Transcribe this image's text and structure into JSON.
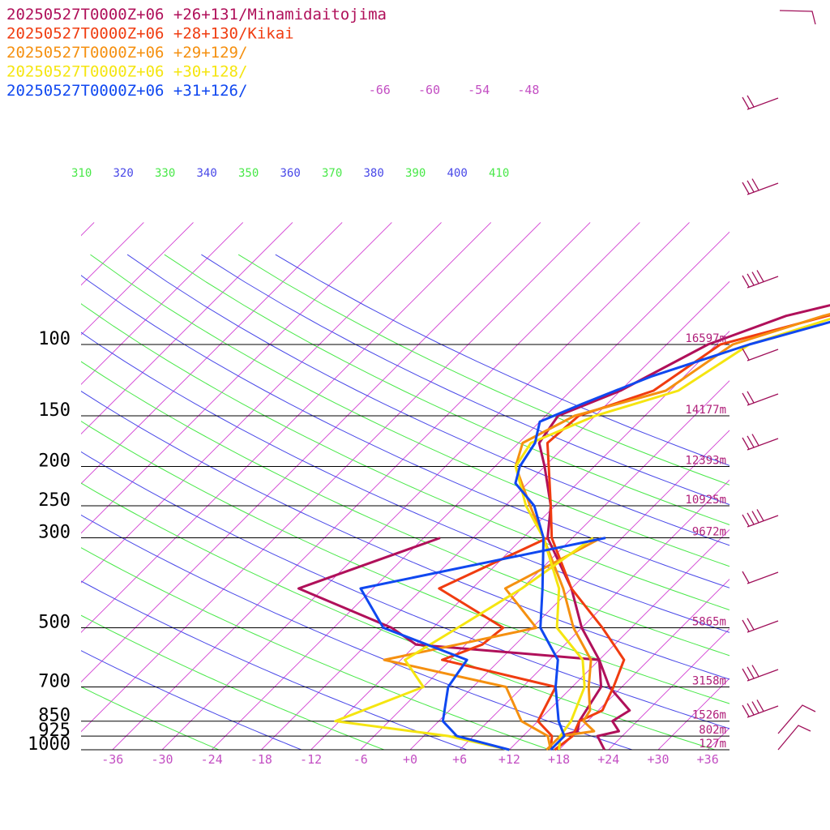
{
  "chart_data": {
    "type": "line",
    "title": "",
    "xlabel": "",
    "ylabel": "",
    "legend_position": "top-left",
    "pressure_levels": [
      100,
      150,
      200,
      250,
      300,
      500,
      700,
      850,
      925,
      1000
    ],
    "pressure_labels": [
      "100",
      "150",
      "200",
      "250",
      "300",
      "500",
      "700",
      "850",
      "925",
      "1000"
    ],
    "height_labels": [
      "16597m",
      "14177m",
      "12393m",
      "10925m",
      "9672m",
      "5865m",
      "3158m",
      "1526m",
      "802m",
      "127m"
    ],
    "temperature_ticks": [
      "-36",
      "-30",
      "-24",
      "-18",
      "-12",
      "-6",
      "+0",
      "+6",
      "+12",
      "+18",
      "+24",
      "+30",
      "+36"
    ],
    "upper_temp_labels": [
      "-66",
      "-60",
      "-54",
      "-48"
    ],
    "theta_labels": [
      "310",
      "320",
      "330",
      "340",
      "350",
      "360",
      "370",
      "380",
      "390",
      "400",
      "410"
    ],
    "series": [
      {
        "name": "20250527T0000Z+06 +26+131/Minamidaitojima",
        "color": "#b0105a",
        "temperature": [
          [
            1000,
            23.5
          ],
          [
            925,
            21.0
          ],
          [
            900,
            23.0
          ],
          [
            850,
            21.0
          ],
          [
            800,
            21.8
          ],
          [
            700,
            16.5
          ],
          [
            600,
            12.0
          ],
          [
            500,
            6.0
          ],
          [
            400,
            0.0
          ],
          [
            300,
            -9.0
          ],
          [
            250,
            -12.5
          ],
          [
            200,
            -18.0
          ],
          [
            175,
            -21.5
          ],
          [
            150,
            -22.5
          ],
          [
            130,
            -18.0
          ],
          [
            100,
            -13.0
          ],
          [
            85,
            -7.0
          ],
          [
            70,
            6.0
          ],
          [
            60,
            20.0
          ]
        ],
        "dewpoint": [
          [
            1000,
            18.0
          ],
          [
            925,
            16.5
          ],
          [
            900,
            18.0
          ],
          [
            850,
            17.0
          ],
          [
            700,
            15.5
          ],
          [
            600,
            12.0
          ],
          [
            550,
            -12.0
          ],
          [
            500,
            -17.0
          ],
          [
            400,
            -33.0
          ],
          [
            300,
            -22.0
          ]
        ]
      },
      {
        "name": "20250527T0000Z+06 +28+130/Kikai",
        "color": "#f03c10",
        "temperature": [
          [
            1000,
            17.5
          ],
          [
            925,
            18.0
          ],
          [
            850,
            17.0
          ],
          [
            800,
            18.5
          ],
          [
            700,
            17.0
          ],
          [
            600,
            15.0
          ],
          [
            500,
            8.5
          ],
          [
            400,
            0.0
          ],
          [
            300,
            -8.5
          ],
          [
            250,
            -12.5
          ],
          [
            200,
            -17.5
          ],
          [
            175,
            -20.5
          ],
          [
            150,
            -20.0
          ],
          [
            130,
            -14.0
          ],
          [
            100,
            -11.5
          ],
          [
            85,
            -2.0
          ],
          [
            70,
            10.0
          ],
          [
            60,
            22.0
          ]
        ],
        "dewpoint": [
          [
            1000,
            17.0
          ],
          [
            925,
            15.5
          ],
          [
            850,
            12.0
          ],
          [
            700,
            10.0
          ],
          [
            600,
            -7.0
          ],
          [
            550,
            -4.0
          ],
          [
            500,
            -3.5
          ],
          [
            400,
            -16.0
          ],
          [
            300,
            -9.0
          ]
        ]
      },
      {
        "name": "20250527T0000Z+06 +29+129/",
        "color": "#f59010",
        "temperature": [
          [
            1000,
            16.5
          ],
          [
            925,
            16.5
          ],
          [
            900,
            20.0
          ],
          [
            850,
            17.5
          ],
          [
            800,
            17.0
          ],
          [
            700,
            14.0
          ],
          [
            600,
            11.0
          ],
          [
            500,
            5.0
          ],
          [
            400,
            -1.0
          ],
          [
            300,
            -9.5
          ],
          [
            250,
            -15.0
          ],
          [
            200,
            -21.5
          ],
          [
            175,
            -23.5
          ],
          [
            150,
            -20.5
          ],
          [
            130,
            -12.5
          ],
          [
            100,
            -10.0
          ],
          [
            85,
            -2.5
          ],
          [
            70,
            9.0
          ],
          [
            60,
            20.0
          ]
        ],
        "dewpoint": [
          [
            1000,
            17.0
          ],
          [
            925,
            15.0
          ],
          [
            850,
            10.0
          ],
          [
            700,
            4.0
          ],
          [
            600,
            -14.0
          ],
          [
            550,
            -7.0
          ],
          [
            500,
            0.5
          ],
          [
            400,
            -8.0
          ],
          [
            300,
            -2.5
          ]
        ]
      },
      {
        "name": "20250527T0000Z+06 +30+128/",
        "color": "#f5e510",
        "temperature": [
          [
            1000,
            18.0
          ],
          [
            925,
            16.5
          ],
          [
            850,
            16.0
          ],
          [
            700,
            13.5
          ],
          [
            600,
            10.0
          ],
          [
            500,
            3.0
          ],
          [
            400,
            -1.5
          ],
          [
            300,
            -9.5
          ],
          [
            250,
            -15.5
          ],
          [
            200,
            -21.5
          ],
          [
            175,
            -22.5
          ],
          [
            150,
            -18.0
          ],
          [
            130,
            -11.0
          ],
          [
            100,
            -8.0
          ],
          [
            85,
            -0.5
          ],
          [
            70,
            9.5
          ],
          [
            60,
            21.0
          ]
        ],
        "dewpoint": [
          [
            1000,
            12.0
          ],
          [
            925,
            3.0
          ],
          [
            850,
            -12.5
          ],
          [
            700,
            -6.0
          ],
          [
            600,
            -11.5
          ],
          [
            500,
            -9.0
          ],
          [
            400,
            -6.0
          ],
          [
            300,
            -3.5
          ]
        ]
      },
      {
        "name": "20250527T0000Z+06 +31+126/",
        "color": "#1048f0",
        "temperature": [
          [
            1000,
            17.0
          ],
          [
            925,
            17.0
          ],
          [
            850,
            14.5
          ],
          [
            700,
            10.0
          ],
          [
            600,
            7.0
          ],
          [
            500,
            1.0
          ],
          [
            400,
            -3.5
          ],
          [
            300,
            -9.5
          ],
          [
            250,
            -14.5
          ],
          [
            220,
            -19.5
          ],
          [
            200,
            -21.0
          ],
          [
            175,
            -22.0
          ],
          [
            155,
            -24.0
          ],
          [
            140,
            -21.0
          ],
          [
            120,
            -16.0
          ],
          [
            100,
            -8.0
          ],
          [
            85,
            1.0
          ],
          [
            70,
            10.0
          ],
          [
            60,
            20.0
          ]
        ],
        "dewpoint": [
          [
            1000,
            12.0
          ],
          [
            925,
            4.0
          ],
          [
            850,
            0.5
          ],
          [
            700,
            -3.0
          ],
          [
            600,
            -4.0
          ],
          [
            500,
            -18.0
          ],
          [
            400,
            -25.5
          ],
          [
            300,
            -2.0
          ]
        ]
      }
    ]
  }
}
